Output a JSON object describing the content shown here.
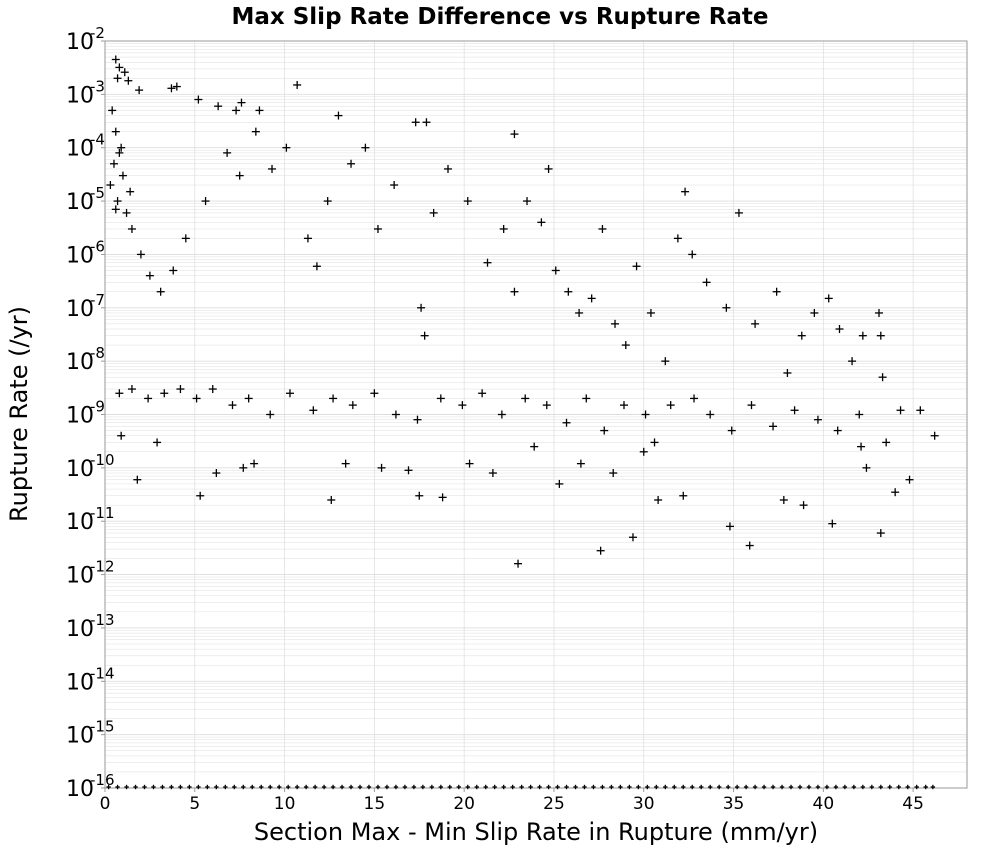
{
  "chart_data": {
    "type": "scatter",
    "title": "Max Slip Rate Difference vs Rupture Rate",
    "xlabel": "Section Max - Min Slip Rate in Rupture (mm/yr)",
    "ylabel": "Rupture Rate (/yr)",
    "xlim": [
      0,
      48
    ],
    "ylim": [
      1e-16,
      0.01
    ],
    "y_scale": "log",
    "grid": true,
    "legend": "none",
    "marker": "plus",
    "colors": {
      "marker": "#000000",
      "grid": "#dddddd",
      "frame": "#999999"
    },
    "x_ticks": [
      "0",
      "5",
      "10",
      "15",
      "20",
      "25",
      "30",
      "35",
      "40",
      "45"
    ],
    "y_ticks": [
      {
        "base": "10",
        "exp": "-16"
      },
      {
        "base": "10",
        "exp": "-15"
      },
      {
        "base": "10",
        "exp": "-14"
      },
      {
        "base": "10",
        "exp": "-13"
      },
      {
        "base": "10",
        "exp": "-12"
      },
      {
        "base": "10",
        "exp": "-11"
      },
      {
        "base": "10",
        "exp": "-10"
      },
      {
        "base": "10",
        "exp": "-9"
      },
      {
        "base": "10",
        "exp": "-8"
      },
      {
        "base": "10",
        "exp": "-7"
      },
      {
        "base": "10",
        "exp": "-6"
      },
      {
        "base": "10",
        "exp": "-5"
      },
      {
        "base": "10",
        "exp": "-4"
      },
      {
        "base": "10",
        "exp": "-3"
      },
      {
        "base": "10",
        "exp": "-2"
      }
    ],
    "points": [
      [
        0.6,
        0.0045
      ],
      [
        0.8,
        0.0032
      ],
      [
        1.1,
        0.0026
      ],
      [
        0.7,
        0.002
      ],
      [
        1.3,
        0.0018
      ],
      [
        1.9,
        0.0012
      ],
      [
        3.7,
        0.0013
      ],
      [
        4.0,
        0.0014
      ],
      [
        5.2,
        0.0008
      ],
      [
        6.3,
        0.0006
      ],
      [
        7.3,
        0.0005
      ],
      [
        7.6,
        0.0007
      ],
      [
        8.6,
        0.0005
      ],
      [
        10.7,
        0.0015
      ],
      [
        13.0,
        0.0004
      ],
      [
        17.3,
        0.0003
      ],
      [
        17.9,
        0.0003
      ],
      [
        22.8,
        0.00018
      ],
      [
        24.7,
        4e-05
      ],
      [
        32.3,
        1.5e-05
      ],
      [
        0.4,
        0.0005
      ],
      [
        0.6,
        0.0002
      ],
      [
        0.9,
        0.0001
      ],
      [
        0.5,
        5e-05
      ],
      [
        1.0,
        3e-05
      ],
      [
        0.7,
        1e-05
      ],
      [
        1.2,
        6e-06
      ],
      [
        1.5,
        3e-06
      ],
      [
        2.0,
        1e-06
      ],
      [
        0.8,
        8e-05
      ],
      [
        0.3,
        2e-05
      ],
      [
        1.4,
        1.5e-05
      ],
      [
        0.6,
        7e-06
      ],
      [
        2.5,
        4e-07
      ],
      [
        3.1,
        2e-07
      ],
      [
        3.8,
        5e-07
      ],
      [
        4.5,
        2e-06
      ],
      [
        5.6,
        1e-05
      ],
      [
        6.8,
        8e-05
      ],
      [
        7.5,
        3e-05
      ],
      [
        8.4,
        0.0002
      ],
      [
        9.3,
        4e-05
      ],
      [
        10.1,
        0.0001
      ],
      [
        11.3,
        2e-06
      ],
      [
        11.8,
        6e-07
      ],
      [
        12.4,
        1e-05
      ],
      [
        13.7,
        5e-05
      ],
      [
        14.5,
        0.0001
      ],
      [
        15.2,
        3e-06
      ],
      [
        16.1,
        2e-05
      ],
      [
        17.6,
        1e-07
      ],
      [
        17.8,
        3e-08
      ],
      [
        18.3,
        6e-06
      ],
      [
        19.1,
        4e-05
      ],
      [
        20.2,
        1e-05
      ],
      [
        21.3,
        7e-07
      ],
      [
        22.2,
        3e-06
      ],
      [
        22.8,
        2e-07
      ],
      [
        23.5,
        1e-05
      ],
      [
        24.3,
        4e-06
      ],
      [
        25.1,
        5e-07
      ],
      [
        25.8,
        2e-07
      ],
      [
        26.4,
        8e-08
      ],
      [
        27.1,
        1.5e-07
      ],
      [
        27.7,
        3e-06
      ],
      [
        28.4,
        5e-08
      ],
      [
        29.0,
        2e-08
      ],
      [
        29.6,
        6e-07
      ],
      [
        30.4,
        8e-08
      ],
      [
        31.2,
        1e-08
      ],
      [
        31.9,
        2e-06
      ],
      [
        32.7,
        1e-06
      ],
      [
        33.5,
        3e-07
      ],
      [
        34.6,
        1e-07
      ],
      [
        35.3,
        6e-06
      ],
      [
        36.2,
        5e-08
      ],
      [
        37.4,
        2e-07
      ],
      [
        38.0,
        6e-09
      ],
      [
        38.8,
        3e-08
      ],
      [
        39.5,
        8e-08
      ],
      [
        40.3,
        1.5e-07
      ],
      [
        40.9,
        4e-08
      ],
      [
        41.6,
        1e-08
      ],
      [
        42.2,
        3e-08
      ],
      [
        43.1,
        8e-08
      ],
      [
        43.2,
        3e-08
      ],
      [
        43.3,
        5e-09
      ],
      [
        44.3,
        1.2e-09
      ],
      [
        45.4,
        1.2e-09
      ],
      [
        46.2,
        4e-10
      ],
      [
        0.8,
        2.5e-09
      ],
      [
        1.5,
        3e-09
      ],
      [
        2.4,
        2e-09
      ],
      [
        3.3,
        2.5e-09
      ],
      [
        4.2,
        3e-09
      ],
      [
        5.1,
        2e-09
      ],
      [
        6.0,
        3e-09
      ],
      [
        7.1,
        1.5e-09
      ],
      [
        8.0,
        2e-09
      ],
      [
        9.2,
        1e-09
      ],
      [
        10.3,
        2.5e-09
      ],
      [
        11.6,
        1.2e-09
      ],
      [
        12.7,
        2e-09
      ],
      [
        13.8,
        1.5e-09
      ],
      [
        15.0,
        2.5e-09
      ],
      [
        16.2,
        1e-09
      ],
      [
        17.4,
        8e-10
      ],
      [
        18.7,
        2e-09
      ],
      [
        19.9,
        1.5e-09
      ],
      [
        21.0,
        2.5e-09
      ],
      [
        22.1,
        1e-09
      ],
      [
        23.4,
        2e-09
      ],
      [
        24.6,
        1.5e-09
      ],
      [
        25.7,
        7e-10
      ],
      [
        26.8,
        2e-09
      ],
      [
        27.8,
        5e-10
      ],
      [
        28.9,
        1.5e-09
      ],
      [
        30.1,
        1e-09
      ],
      [
        30.6,
        3e-10
      ],
      [
        31.5,
        1.5e-09
      ],
      [
        32.8,
        2e-09
      ],
      [
        33.7,
        1e-09
      ],
      [
        34.9,
        5e-10
      ],
      [
        36.0,
        1.5e-09
      ],
      [
        37.2,
        6e-10
      ],
      [
        38.4,
        1.2e-09
      ],
      [
        39.7,
        8e-10
      ],
      [
        40.8,
        5e-10
      ],
      [
        42.0,
        1e-09
      ],
      [
        43.5,
        3e-10
      ],
      [
        0.9,
        4e-10
      ],
      [
        1.8,
        6e-11
      ],
      [
        2.9,
        3e-10
      ],
      [
        5.3,
        3e-11
      ],
      [
        6.2,
        8e-11
      ],
      [
        7.7,
        1e-10
      ],
      [
        8.3,
        1.2e-10
      ],
      [
        12.6,
        2.5e-11
      ],
      [
        13.4,
        1.2e-10
      ],
      [
        15.4,
        1e-10
      ],
      [
        16.9,
        9e-11
      ],
      [
        17.5,
        3e-11
      ],
      [
        18.8,
        2.8e-11
      ],
      [
        20.3,
        1.2e-10
      ],
      [
        21.6,
        8e-11
      ],
      [
        23.0,
        1.6e-12
      ],
      [
        23.9,
        2.5e-10
      ],
      [
        25.3,
        5e-11
      ],
      [
        26.5,
        1.2e-10
      ],
      [
        27.6,
        2.8e-12
      ],
      [
        28.3,
        8e-11
      ],
      [
        29.4,
        5e-12
      ],
      [
        30.0,
        2e-10
      ],
      [
        30.8,
        2.5e-11
      ],
      [
        32.2,
        3e-11
      ],
      [
        34.8,
        8e-12
      ],
      [
        35.9,
        3.5e-12
      ],
      [
        37.8,
        2.5e-11
      ],
      [
        38.9,
        2e-11
      ],
      [
        40.5,
        9e-12
      ],
      [
        42.4,
        1e-10
      ],
      [
        43.2,
        6e-12
      ],
      [
        44.0,
        3.5e-11
      ],
      [
        44.8,
        6e-11
      ],
      [
        42.1,
        2.5e-10
      ]
    ],
    "baseline_points_x": [
      0.2,
      0.7,
      1.2,
      1.7,
      2.2,
      2.7,
      3.2,
      3.7,
      4.2,
      4.7,
      5.2,
      5.7,
      6.2,
      6.7,
      7.2,
      7.7,
      8.2,
      8.7,
      9.2,
      9.7,
      10.2,
      10.7,
      11.2,
      11.7,
      12.2,
      12.7,
      13.2,
      13.7,
      14.2,
      14.7,
      15.2,
      15.7,
      16.2,
      16.7,
      17.2,
      17.7,
      18.2,
      18.7,
      19.2,
      19.7,
      20.2,
      20.7,
      21.2,
      21.7,
      22.2,
      22.7,
      23.2,
      23.7,
      24.2,
      24.7,
      25.2,
      25.7,
      26.2,
      26.7,
      27.2,
      27.7,
      28.2,
      28.7,
      29.2,
      29.7,
      30.2,
      30.7,
      31.2,
      31.7,
      32.2,
      32.7,
      33.2,
      33.7,
      34.2,
      34.7,
      35.2,
      35.7,
      36.2,
      36.7,
      37.2,
      37.7,
      38.2,
      38.7,
      39.2,
      39.7,
      40.2,
      40.7,
      41.2,
      41.7,
      42.2,
      42.7,
      43.2,
      43.7,
      44.2,
      44.7,
      45.2,
      45.7,
      46.1
    ]
  }
}
